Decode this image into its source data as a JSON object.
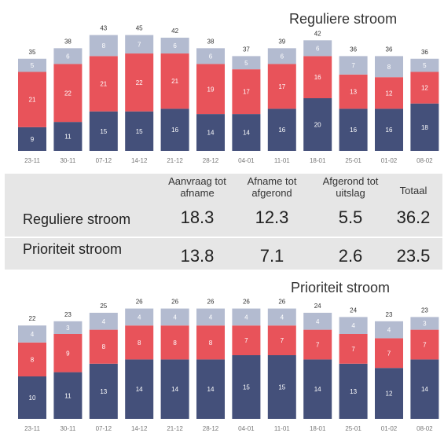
{
  "colors": {
    "segment_bottom": "#44507a",
    "segment_middle": "#e8535a",
    "segment_top": "#b3bbd0",
    "summary_bg": "#e6e6e6"
  },
  "summary": {
    "headers": [
      "Aanvraag tot afname",
      "Afname tot afgerond",
      "Afgerond tot uitslag",
      "Totaal"
    ],
    "rows": [
      {
        "label": "Reguliere stroom",
        "values": [
          "18.3",
          "12.3",
          "5.5",
          "36.2"
        ]
      },
      {
        "label": "Prioriteit stroom",
        "values": [
          "13.8",
          "7.1",
          "2.6",
          "23.5"
        ]
      }
    ]
  },
  "chart_data": [
    {
      "type": "bar",
      "stacked": true,
      "title": "Reguliere stroom",
      "categories": [
        "23-11",
        "30-11",
        "07-12",
        "14-12",
        "21-12",
        "28-12",
        "04-01",
        "11-01",
        "18-01",
        "25-01",
        "01-02",
        "08-02"
      ],
      "series": [
        {
          "values": [
            9,
            11,
            15,
            15,
            16,
            14,
            14,
            16,
            20,
            16,
            16,
            18
          ]
        },
        {
          "values": [
            21,
            22,
            21,
            22,
            21,
            19,
            17,
            17,
            16,
            13,
            12,
            12
          ]
        },
        {
          "values": [
            5,
            6,
            8,
            7,
            6,
            6,
            5,
            6,
            6,
            7,
            8,
            5
          ]
        }
      ],
      "totals": [
        35,
        38,
        43,
        45,
        42,
        38,
        37,
        39,
        42,
        36,
        36,
        36
      ],
      "legend": "none",
      "grid": false
    },
    {
      "type": "bar",
      "stacked": true,
      "title": "Prioriteit stroom",
      "categories": [
        "23-11",
        "30-11",
        "07-12",
        "14-12",
        "21-12",
        "28-12",
        "04-01",
        "11-01",
        "18-01",
        "25-01",
        "01-02",
        "08-02"
      ],
      "series": [
        {
          "values": [
            10,
            11,
            13,
            14,
            14,
            14,
            15,
            15,
            14,
            13,
            12,
            14
          ]
        },
        {
          "values": [
            8,
            9,
            8,
            8,
            8,
            8,
            7,
            7,
            7,
            7,
            7,
            7
          ]
        },
        {
          "values": [
            4,
            3,
            4,
            4,
            4,
            4,
            4,
            4,
            4,
            4,
            4,
            3
          ]
        }
      ],
      "totals": [
        22,
        23,
        25,
        26,
        26,
        26,
        26,
        26,
        24,
        24,
        23,
        23
      ],
      "legend": "none",
      "grid": false
    }
  ]
}
